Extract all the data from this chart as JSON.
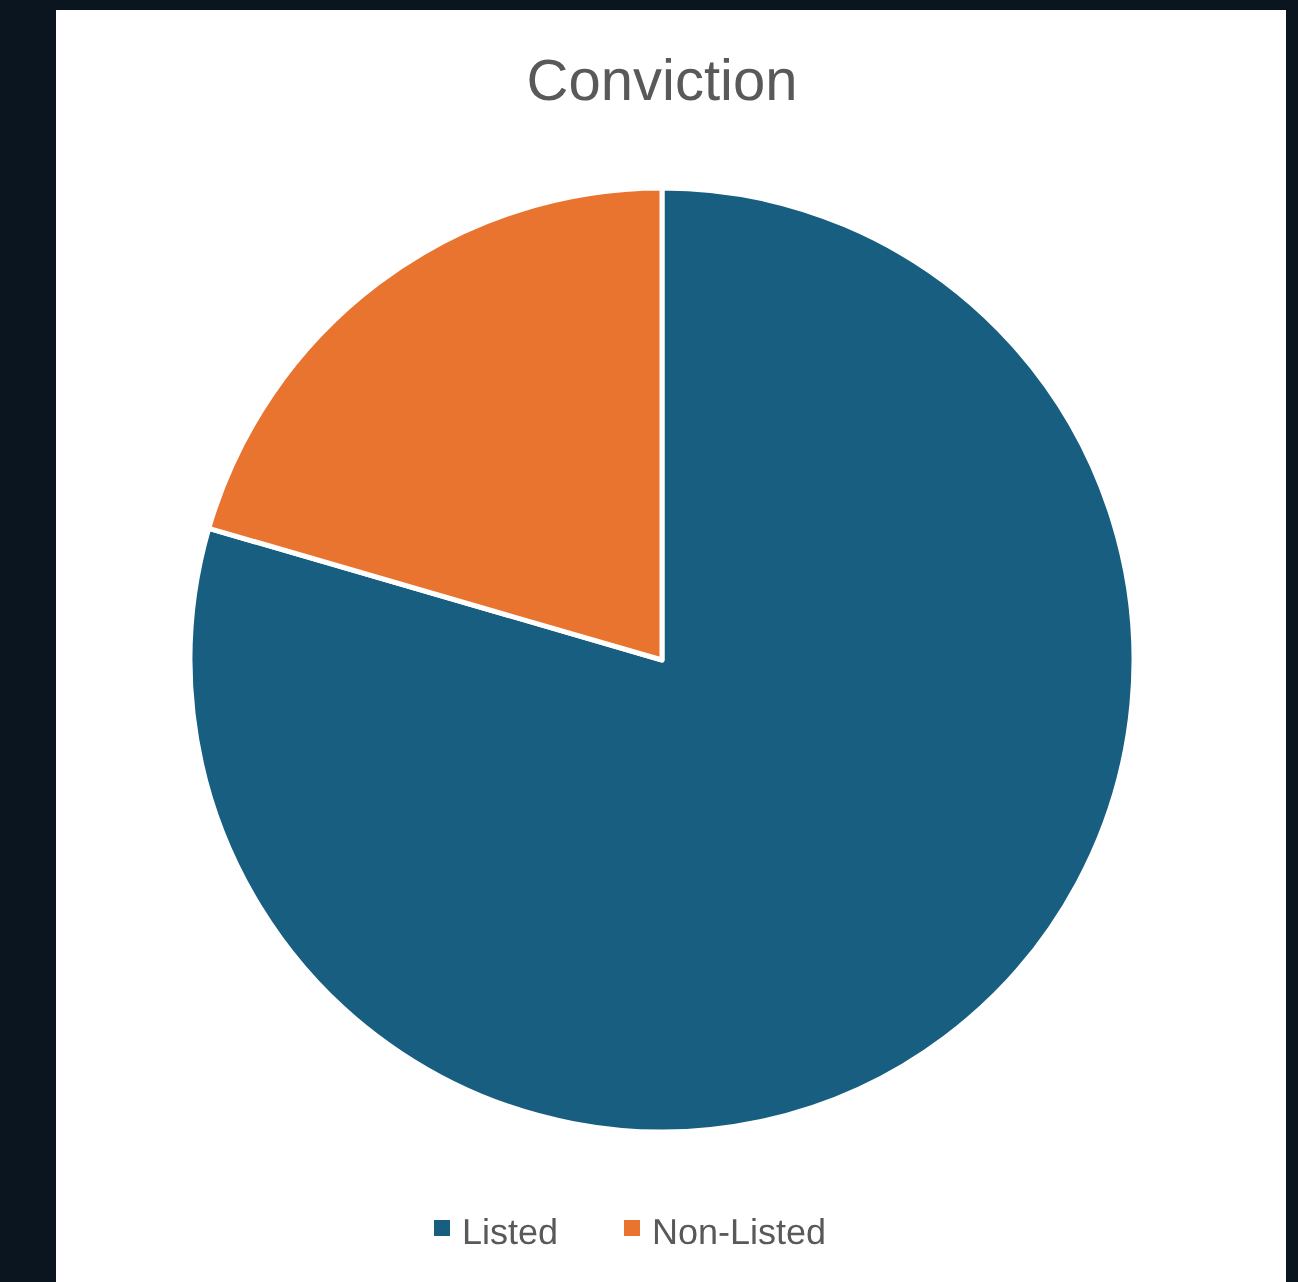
{
  "chart_data": {
    "type": "pie",
    "title": "Conviction",
    "categories": [
      "Listed",
      "Non-Listed"
    ],
    "values": [
      79.5,
      20.5
    ],
    "colors": [
      "#175e80",
      "#e87430"
    ],
    "legend": "bottom"
  }
}
